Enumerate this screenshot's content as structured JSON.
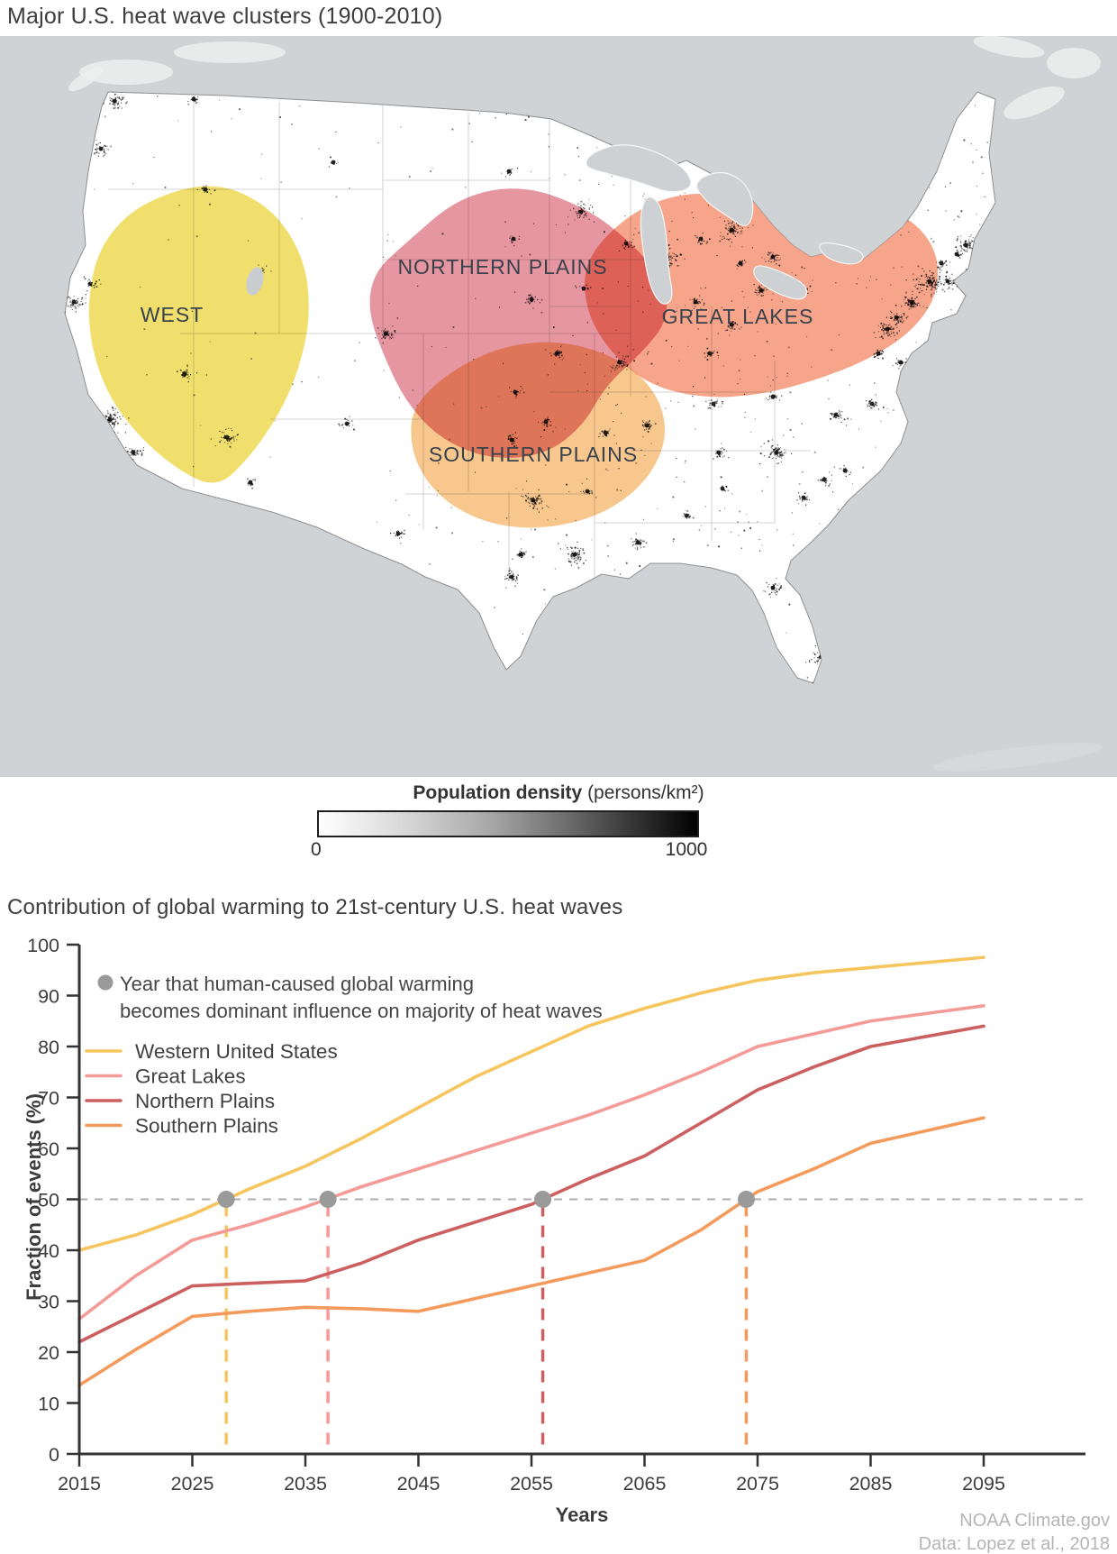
{
  "map_section": {
    "title": "Major U.S. heat wave clusters (1900-2010)",
    "regions": [
      {
        "label": "WEST",
        "fill": "#F1DE65"
      },
      {
        "label": "NORTHERN PLAINS",
        "fill": "#E2838F"
      },
      {
        "label": "GREAT LAKES",
        "fill": "#F59B7E"
      },
      {
        "label": "SOUTHERN PLAINS",
        "fill": "#F7C488"
      }
    ],
    "density_legend": {
      "title_bold": "Population density",
      "title_units": " (persons/km²)",
      "min_label": "0",
      "max_label": "1000",
      "gradient_start": "#FFFFFF",
      "gradient_end": "#000000"
    }
  },
  "chart_section": {
    "title": "Contribution of global warming to 21st-century U.S. heat waves",
    "annotation_line1": "Year that human-caused global warming",
    "annotation_line2": "becomes dominant influence on majority of heat waves",
    "xlabel": "Years",
    "ylabel": "Fraction of events (%)"
  },
  "chart_data": {
    "type": "line",
    "title": "Contribution of global warming to 21st-century U.S. heat waves",
    "xlabel": "Years",
    "ylabel": "Fraction of events (%)",
    "xlim": [
      2015,
      2095
    ],
    "ylim": [
      0,
      100
    ],
    "x_ticks": [
      2015,
      2025,
      2035,
      2045,
      2055,
      2065,
      2075,
      2085,
      2095
    ],
    "y_ticks": [
      0,
      10,
      20,
      30,
      40,
      50,
      60,
      70,
      80,
      90,
      100
    ],
    "grid": false,
    "legend_position": "upper-left",
    "threshold_line": {
      "value": 50,
      "style": "dashed",
      "color": "#ACACAC"
    },
    "marker_meaning": "Year that human-caused global warming becomes dominant influence on majority of heat waves",
    "marker_color": "#9A9A9A",
    "x": [
      2015,
      2020,
      2025,
      2030,
      2035,
      2040,
      2045,
      2050,
      2055,
      2060,
      2065,
      2070,
      2075,
      2080,
      2085,
      2090,
      2095
    ],
    "series": [
      {
        "name": "Western United States",
        "color": "#F7C55E",
        "crossing_year": 2028,
        "values": [
          40,
          43,
          47,
          52,
          56.5,
          62,
          68,
          74,
          79,
          84,
          87.5,
          90.5,
          93,
          94.5,
          95.5,
          96.5,
          97.5
        ]
      },
      {
        "name": "Great Lakes",
        "color": "#F49B98",
        "crossing_year": 2037,
        "values": [
          26.5,
          35,
          42,
          45,
          48.5,
          52.5,
          56,
          59.5,
          63,
          66.5,
          70.5,
          75,
          80,
          82.5,
          85,
          86.5,
          88
        ]
      },
      {
        "name": "Northern Plains",
        "color": "#CC5F5F",
        "crossing_year": 2056,
        "values": [
          22,
          27.5,
          33,
          33.5,
          34,
          37.5,
          42,
          45.5,
          49,
          54,
          58.5,
          65,
          71.5,
          76,
          80,
          82,
          84
        ]
      },
      {
        "name": "Southern Plains",
        "color": "#F49A5C",
        "crossing_year": 2074,
        "values": [
          13.5,
          20.5,
          27,
          28,
          28.8,
          28.5,
          28,
          30.5,
          33,
          35.5,
          38,
          44,
          51.5,
          56,
          61,
          63.5,
          66
        ]
      }
    ]
  },
  "credits": {
    "line1": "NOAA Climate.gov",
    "line2": "Data: Lopez et al., 2018"
  }
}
